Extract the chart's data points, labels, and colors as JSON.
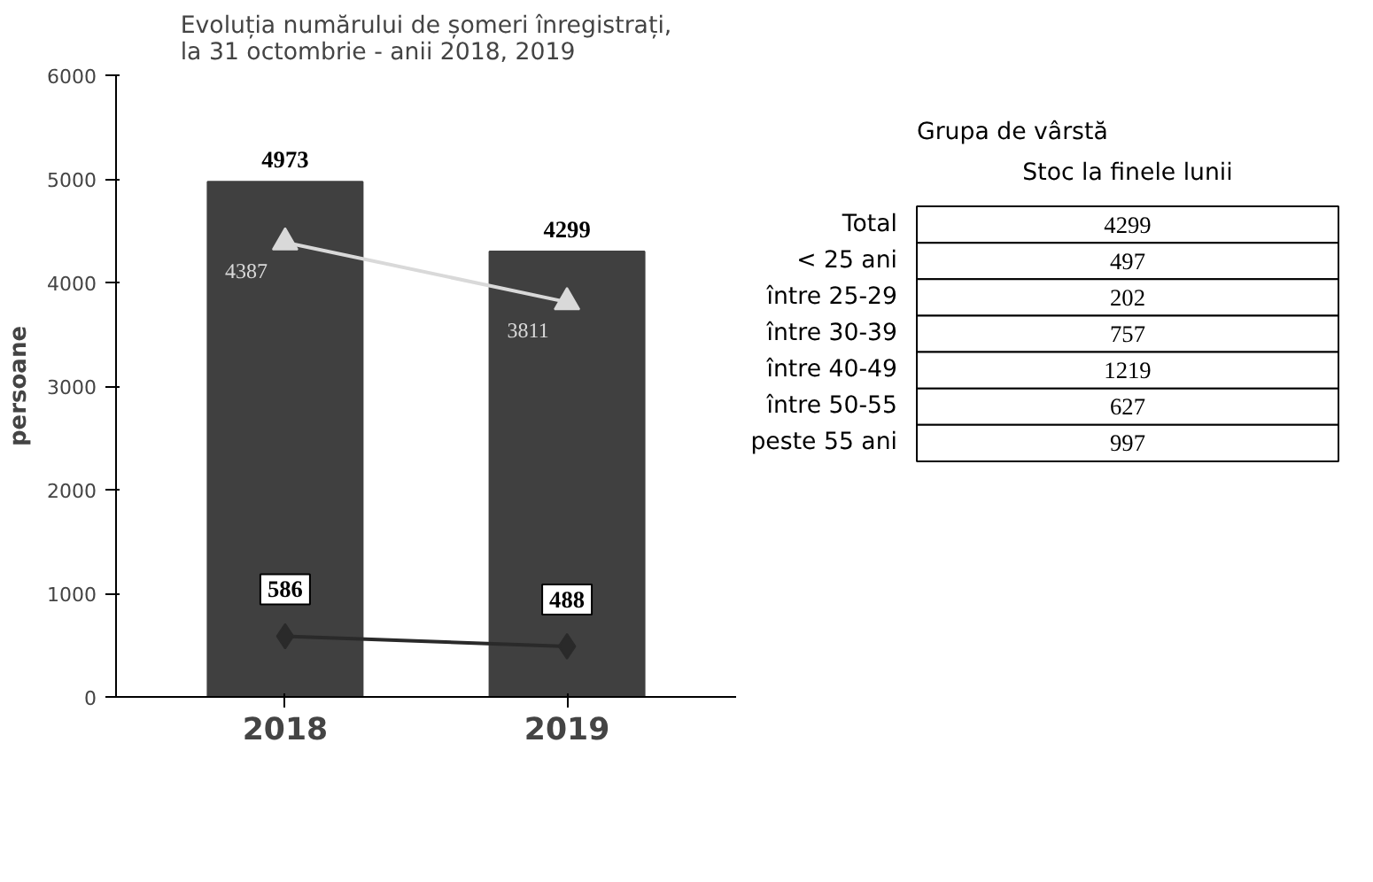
{
  "chart_data": [
    {
      "type": "bar",
      "title": "Evoluția numărului de șomeri înregistrați, la 31 octombrie - anii 2018, 2019",
      "ylabel": "persoane",
      "categories": [
        "2018",
        "2019"
      ],
      "ylim": [
        0,
        6000
      ],
      "yticks": [
        0,
        1000,
        2000,
        3000,
        4000,
        5000,
        6000
      ],
      "grid": false,
      "data_labels": true,
      "series": [
        {
          "type": "bar",
          "color": "#404040",
          "values": [
            4973,
            4299
          ]
        },
        {
          "type": "line",
          "color": "#d9d9d9",
          "marker": "triangle",
          "values": [
            4387,
            3811
          ]
        },
        {
          "type": "line",
          "color": "#2a2a2a",
          "marker": "diamond",
          "values": [
            586,
            488
          ]
        }
      ]
    },
    {
      "type": "heatmap",
      "ylabel": "Grupa de vârstă",
      "categories": [
        "Stoc la finele lunii"
      ],
      "y_categories": [
        "Total",
        "< 25 ani",
        "între 25-29",
        "între 30-39",
        "între 40-49",
        "între 50-55",
        "peste 55 ani"
      ],
      "cells": [
        [
          4299
        ],
        [
          497
        ],
        [
          202
        ],
        [
          757
        ],
        [
          1219
        ],
        [
          627
        ],
        [
          997
        ]
      ],
      "data_labels": true
    }
  ]
}
